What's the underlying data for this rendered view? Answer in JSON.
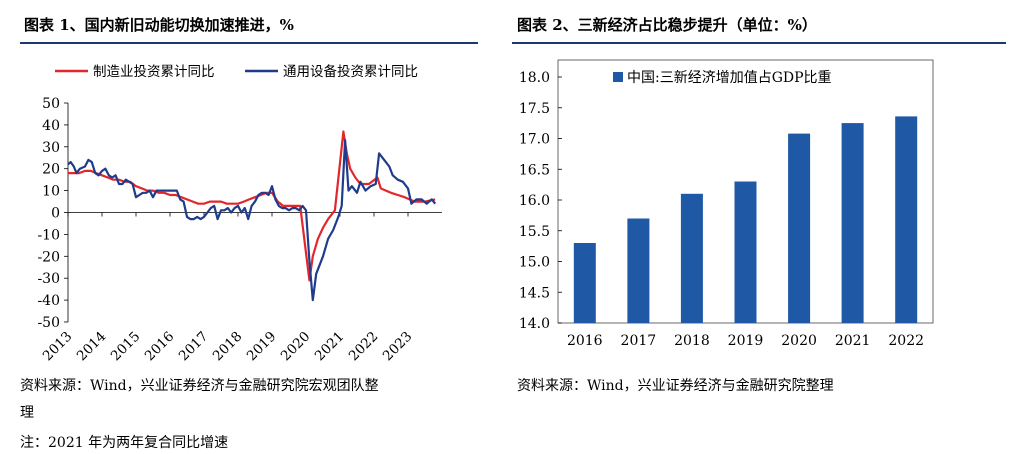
{
  "left_panel": {
    "title": "图表 1、国内新旧动能切换加速推进，%",
    "source": "资料来源：Wind，兴业证券经济与金融研究院宏观团队整",
    "source_cont": "理",
    "note": "注：2021 年为两年复合同比增速"
  },
  "right_panel": {
    "title": "图表 2、三新经济占比稳步提升（单位：%）",
    "source": "资料来源：Wind，兴业证券经济与金融研究院整理"
  },
  "colors": {
    "manufacturing": "#e3262b",
    "equipment": "#1f3c8c",
    "bar": "#1f58a5",
    "rule": "#1a3a6e"
  },
  "chart_data": [
    {
      "type": "line",
      "ylim": [
        -50,
        50
      ],
      "yticks": [
        "50",
        "40",
        "30",
        "20",
        "10",
        "0",
        "-10",
        "-20",
        "-30",
        "-40",
        "-50"
      ],
      "xticks": [
        "2013",
        "2014",
        "2015",
        "2016",
        "2017",
        "2018",
        "2019",
        "2020",
        "2021",
        "2022",
        "2023"
      ],
      "series": [
        {
          "name": "制造业投资累计同比",
          "color": "#e3262b",
          "x": [
            2013.0,
            2013.17,
            2013.33,
            2013.5,
            2013.67,
            2013.83,
            2014.0,
            2014.17,
            2014.33,
            2014.5,
            2014.67,
            2014.83,
            2015.0,
            2015.17,
            2015.33,
            2015.5,
            2015.67,
            2015.83,
            2016.0,
            2016.17,
            2016.33,
            2016.5,
            2016.67,
            2016.83,
            2017.0,
            2017.17,
            2017.33,
            2017.5,
            2017.67,
            2017.83,
            2018.0,
            2018.17,
            2018.33,
            2018.5,
            2018.67,
            2018.83,
            2019.0,
            2019.17,
            2019.33,
            2019.5,
            2019.67,
            2019.83,
            2020.1,
            2020.2,
            2020.35,
            2020.5,
            2020.65,
            2020.85,
            2021.1,
            2021.2,
            2021.3,
            2021.45,
            2021.6,
            2021.85,
            2022.1,
            2022.2,
            2022.35,
            2022.5,
            2022.7,
            2022.9,
            2023.2,
            2023.5,
            2023.8
          ],
          "values": [
            18,
            18,
            18,
            19,
            19,
            18,
            17,
            16,
            15,
            15,
            14,
            14,
            12,
            11,
            10,
            10,
            9,
            9,
            8,
            8,
            7,
            6,
            5,
            4,
            4,
            5,
            5,
            5,
            4,
            4,
            4,
            5,
            6,
            7,
            8,
            9,
            9,
            5,
            3,
            3,
            3,
            3,
            -31,
            -20,
            -12,
            -7,
            -3,
            1,
            37,
            27,
            20,
            16,
            13,
            13,
            16,
            11,
            10,
            9,
            8,
            7,
            5,
            5,
            6
          ]
        },
        {
          "name": "通用设备投资累计同比",
          "color": "#1f3c8c",
          "x": [
            2013.0,
            2013.08,
            2013.17,
            2013.25,
            2013.35,
            2013.5,
            2013.6,
            2013.7,
            2013.8,
            2013.9,
            2014.0,
            2014.1,
            2014.2,
            2014.3,
            2014.4,
            2014.5,
            2014.6,
            2014.7,
            2014.8,
            2014.9,
            2015.0,
            2015.1,
            2015.2,
            2015.3,
            2015.4,
            2015.5,
            2015.6,
            2015.7,
            2015.8,
            2015.9,
            2016.0,
            2016.1,
            2016.2,
            2016.3,
            2016.4,
            2016.5,
            2016.6,
            2016.7,
            2016.8,
            2016.9,
            2017.0,
            2017.1,
            2017.2,
            2017.3,
            2017.4,
            2017.5,
            2017.6,
            2017.7,
            2017.8,
            2017.9,
            2018.0,
            2018.1,
            2018.2,
            2018.3,
            2018.4,
            2018.5,
            2018.6,
            2018.7,
            2018.8,
            2018.9,
            2019.0,
            2019.1,
            2019.2,
            2019.3,
            2019.4,
            2019.5,
            2019.6,
            2019.7,
            2019.8,
            2019.9,
            2020.0,
            2020.1,
            2020.2,
            2020.3,
            2020.5,
            2020.65,
            2020.8,
            2020.95,
            2021.05,
            2021.15,
            2021.25,
            2021.35,
            2021.5,
            2021.6,
            2021.75,
            2021.9,
            2022.05,
            2022.15,
            2022.3,
            2022.45,
            2022.55,
            2022.7,
            2022.85,
            2023.0,
            2023.1,
            2023.25,
            2023.4,
            2023.55,
            2023.7,
            2023.8
          ],
          "values": [
            22,
            23,
            21,
            18,
            20,
            21,
            24,
            23,
            18,
            17,
            19,
            20,
            17,
            16,
            17,
            13,
            13,
            15,
            14,
            13,
            7,
            8,
            9,
            9,
            10,
            7,
            10,
            10,
            10,
            10,
            10,
            10,
            10,
            6,
            5,
            -2,
            -3,
            -3,
            -2,
            -3,
            -2,
            0,
            2,
            3,
            -3,
            1,
            1,
            2,
            0,
            2,
            3,
            0,
            2,
            -3,
            3,
            5,
            8,
            9,
            9,
            8,
            12,
            6,
            3,
            2,
            2,
            1,
            2,
            2,
            1,
            3,
            1,
            -22,
            -40,
            -28,
            -20,
            -12,
            -8,
            -2,
            3,
            33,
            10,
            12,
            9,
            14,
            10,
            12,
            13,
            27,
            24,
            21,
            17,
            15,
            14,
            11,
            4,
            6,
            6,
            4,
            6,
            4
          ]
        }
      ]
    },
    {
      "type": "bar",
      "legend": "中国:三新经济增加值占GDP比重",
      "ylim": [
        14.0,
        18.0
      ],
      "yticks": [
        "18.0",
        "17.5",
        "17.0",
        "16.5",
        "16.0",
        "15.5",
        "15.0",
        "14.5",
        "14.0"
      ],
      "categories": [
        "2016",
        "2017",
        "2018",
        "2019",
        "2020",
        "2021",
        "2022"
      ],
      "values": [
        15.3,
        15.7,
        16.1,
        16.3,
        17.08,
        17.25,
        17.36
      ]
    }
  ]
}
